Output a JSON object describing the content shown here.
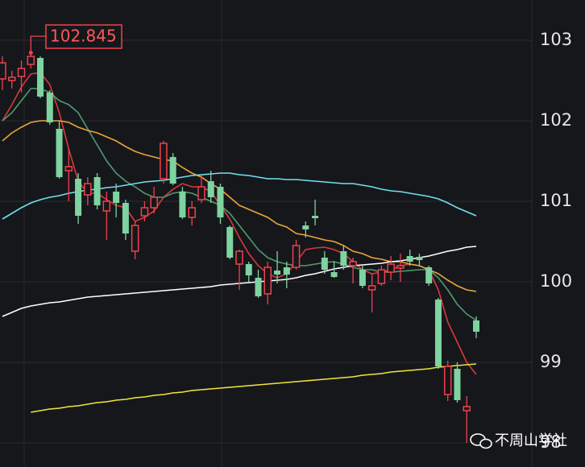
{
  "chart_data": {
    "type": "candlestick",
    "ylim": [
      97.7,
      103.5
    ],
    "yticks": [
      98,
      99,
      100,
      101,
      102,
      103
    ],
    "grid": true,
    "up_color": "#f0424d",
    "down_color": "#7ed3a0",
    "open": [
      102.52,
      102.5,
      102.55,
      102.7,
      102.78,
      102.35,
      101.9,
      101.38,
      101.28,
      101.08,
      101.3,
      100.88,
      101.12,
      100.98,
      100.38,
      100.82,
      100.92,
      101.28,
      101.55,
      101.12,
      100.8,
      101.02,
      101.25,
      101.18,
      100.68,
      100.22,
      100.22,
      100.05,
      99.85,
      100.14,
      100.18,
      100.18,
      100.7,
      100.82,
      100.3,
      100.12,
      100.38,
      100.2,
      100.15,
      99.9,
      99.98,
      100.12,
      100.17,
      100.32,
      100.31,
      100.18,
      99.78,
      98.6,
      98.92,
      98.4,
      99.52
    ],
    "high": [
      102.8,
      102.62,
      102.75,
      102.845,
      102.8,
      102.38,
      102.0,
      101.65,
      101.35,
      101.3,
      101.35,
      101.12,
      101.22,
      101.02,
      100.75,
      101.0,
      101.18,
      101.75,
      101.6,
      101.18,
      101.0,
      101.32,
      101.38,
      101.22,
      100.7,
      100.4,
      100.25,
      100.15,
      100.25,
      100.38,
      100.25,
      100.52,
      100.75,
      101.02,
      100.38,
      100.25,
      100.45,
      100.3,
      100.2,
      100.1,
      100.2,
      100.32,
      100.35,
      100.4,
      100.35,
      100.2,
      99.8,
      99.02,
      99.0,
      98.58,
      99.57
    ],
    "low": [
      102.38,
      102.4,
      102.35,
      102.65,
      102.28,
      101.95,
      101.28,
      101.0,
      100.72,
      100.95,
      100.9,
      100.52,
      100.8,
      100.52,
      100.28,
      100.75,
      100.85,
      101.22,
      101.2,
      100.78,
      100.7,
      100.98,
      100.98,
      100.72,
      100.28,
      99.9,
      100.0,
      99.8,
      99.72,
      99.98,
      99.92,
      100.15,
      100.55,
      100.7,
      100.1,
      100.05,
      100.15,
      99.98,
      99.92,
      99.62,
      99.95,
      100.02,
      100.0,
      100.2,
      100.2,
      99.95,
      98.92,
      98.52,
      98.5,
      98.0,
      99.3
    ],
    "close": [
      102.72,
      102.54,
      102.65,
      102.8,
      102.3,
      101.98,
      101.3,
      101.43,
      100.82,
      101.22,
      100.95,
      101.0,
      100.98,
      100.6,
      100.7,
      100.92,
      101.05,
      101.72,
      101.22,
      100.8,
      100.92,
      101.18,
      101.05,
      100.8,
      100.3,
      100.38,
      100.08,
      99.82,
      100.18,
      100.09,
      100.09,
      100.45,
      100.65,
      100.79,
      100.15,
      100.06,
      100.2,
      100.25,
      99.95,
      99.95,
      100.15,
      100.22,
      100.2,
      100.25,
      100.27,
      99.98,
      98.95,
      98.95,
      98.53,
      98.45,
      99.38
    ],
    "series": [
      {
        "color": "#d8393c",
        "values": [
          102.0,
          102.2,
          102.42,
          102.58,
          102.6,
          102.45,
          102.1,
          101.65,
          101.25,
          101.1,
          101.1,
          101.02,
          100.95,
          100.92,
          100.75,
          100.8,
          100.88,
          101.05,
          101.15,
          101.22,
          101.18,
          101.18,
          101.12,
          100.95,
          100.78,
          100.55,
          100.35,
          100.2,
          100.1,
          100.05,
          100.1,
          100.25,
          100.4,
          100.42,
          100.43,
          100.4,
          100.35,
          100.25,
          100.15,
          100.1,
          100.12,
          100.15,
          100.2,
          100.22,
          100.2,
          100.15,
          99.9,
          99.5,
          99.25,
          99.0,
          98.85
        ]
      },
      {
        "color": "#4f9c6c",
        "values": [
          102.0,
          102.1,
          102.25,
          102.4,
          102.4,
          102.35,
          102.25,
          102.2,
          102.1,
          101.9,
          101.7,
          101.5,
          101.35,
          101.25,
          101.18,
          101.1,
          101.05,
          101.05,
          101.1,
          101.12,
          101.1,
          101.05,
          101.0,
          100.95,
          100.85,
          100.7,
          100.55,
          100.4,
          100.3,
          100.25,
          100.22,
          100.2,
          100.2,
          100.22,
          100.24,
          100.25,
          100.22,
          100.18,
          100.15,
          100.15,
          100.12,
          100.12,
          100.13,
          100.14,
          100.15,
          100.15,
          100.05,
          99.9,
          99.72,
          99.6,
          99.52
        ]
      },
      {
        "color": "#e9a53c",
        "values": [
          101.75,
          101.85,
          101.92,
          101.98,
          102.0,
          102.0,
          102.0,
          101.98,
          101.92,
          101.88,
          101.85,
          101.8,
          101.75,
          101.68,
          101.62,
          101.58,
          101.55,
          101.52,
          101.5,
          101.42,
          101.35,
          101.3,
          101.22,
          101.15,
          101.05,
          100.95,
          100.9,
          100.85,
          100.8,
          100.72,
          100.68,
          100.6,
          100.58,
          100.55,
          100.52,
          100.5,
          100.45,
          100.38,
          100.35,
          100.3,
          100.28,
          100.25,
          100.25,
          100.22,
          100.2,
          100.15,
          100.1,
          100.02,
          99.95,
          99.9,
          99.88
        ]
      },
      {
        "color": "#6fe2ee",
        "values": [
          100.78,
          100.85,
          100.92,
          100.98,
          101.02,
          101.05,
          101.07,
          101.1,
          101.12,
          101.14,
          101.15,
          101.17,
          101.18,
          101.2,
          101.22,
          101.24,
          101.25,
          101.26,
          101.28,
          101.3,
          101.32,
          101.33,
          101.34,
          101.35,
          101.35,
          101.33,
          101.32,
          101.3,
          101.28,
          101.28,
          101.27,
          101.27,
          101.26,
          101.25,
          101.24,
          101.23,
          101.22,
          101.22,
          101.2,
          101.18,
          101.15,
          101.13,
          101.12,
          101.1,
          101.08,
          101.06,
          101.03,
          100.98,
          100.92,
          100.87,
          100.82
        ]
      },
      {
        "color": "#ffffff",
        "values": [
          99.57,
          99.62,
          99.67,
          99.7,
          99.72,
          99.74,
          99.75,
          99.77,
          99.79,
          99.81,
          99.82,
          99.83,
          99.84,
          99.85,
          99.86,
          99.87,
          99.88,
          99.89,
          99.9,
          99.91,
          99.92,
          99.93,
          99.94,
          99.96,
          99.97,
          99.98,
          99.99,
          100.0,
          100.01,
          100.02,
          100.03,
          100.05,
          100.08,
          100.1,
          100.13,
          100.16,
          100.18,
          100.2,
          100.21,
          100.22,
          100.23,
          100.25,
          100.26,
          100.28,
          100.3,
          100.32,
          100.35,
          100.38,
          100.4,
          100.43,
          100.44
        ]
      },
      {
        "color": "#f2e43c",
        "values": [
          null,
          null,
          null,
          98.38,
          98.4,
          98.42,
          98.43,
          98.45,
          98.46,
          98.48,
          98.5,
          98.51,
          98.53,
          98.54,
          98.56,
          98.57,
          98.59,
          98.6,
          98.62,
          98.63,
          98.65,
          98.66,
          98.67,
          98.68,
          98.69,
          98.7,
          98.71,
          98.72,
          98.73,
          98.74,
          98.75,
          98.76,
          98.77,
          98.78,
          98.79,
          98.8,
          98.81,
          98.82,
          98.84,
          98.85,
          98.86,
          98.88,
          98.89,
          98.9,
          98.91,
          98.92,
          98.94,
          98.95,
          98.96,
          98.97,
          98.98
        ]
      }
    ],
    "watermark": "不周山学社"
  }
}
